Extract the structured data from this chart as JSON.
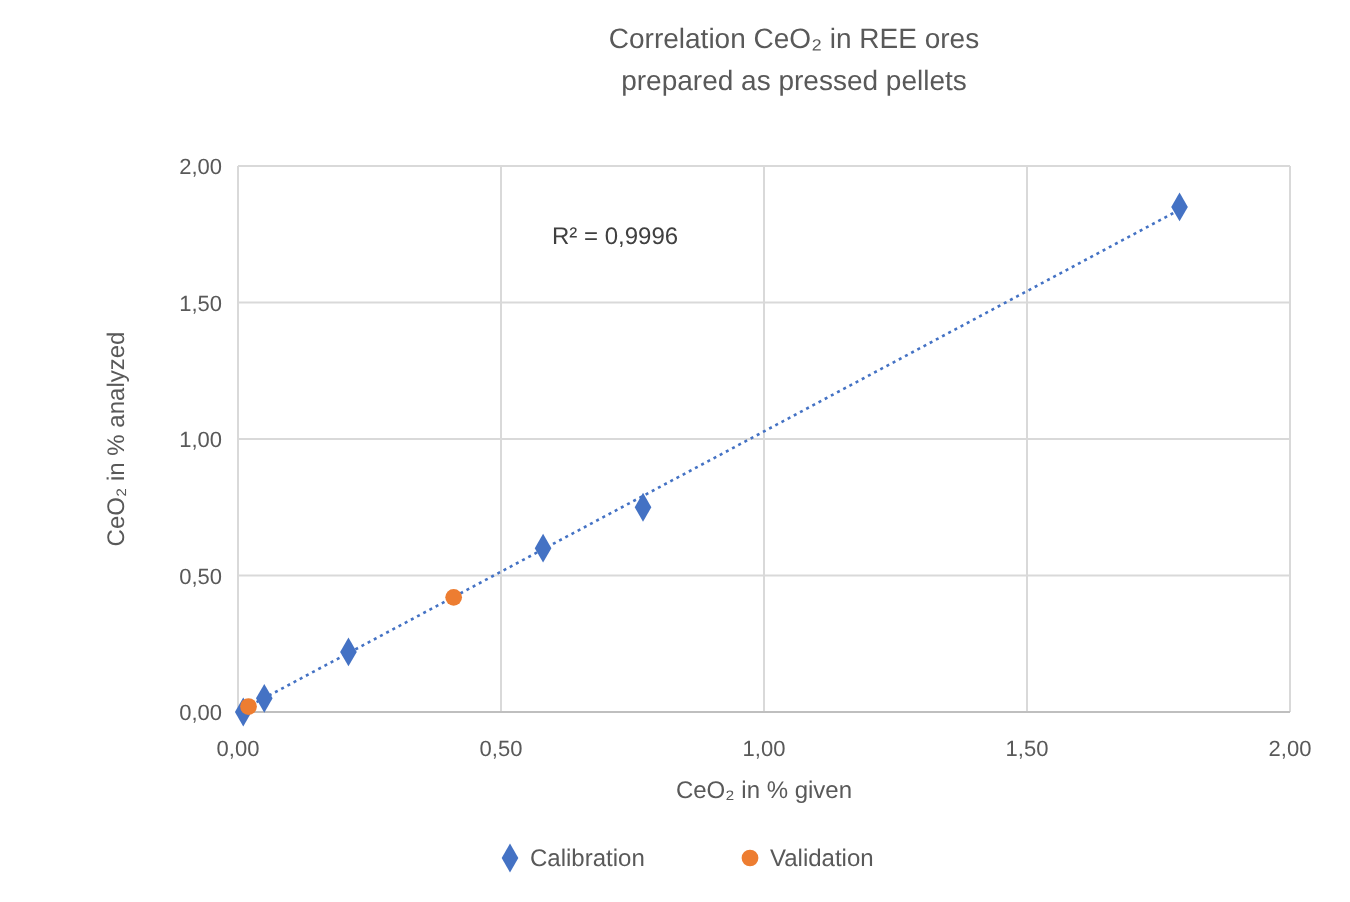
{
  "chart_data": {
    "type": "scatter",
    "title": "Correlation CeO₂ in REE ores\nprepared as pressed pellets",
    "xlabel": "CeO₂ in % given",
    "ylabel": "CeO₂ in % analyzed",
    "annotations": [
      "R² = 0,9996"
    ],
    "xlim": [
      0,
      2
    ],
    "ylim": [
      0,
      2
    ],
    "xticks": [
      {
        "value": 0,
        "label": "0,00"
      },
      {
        "value": 0.5,
        "label": "0,50"
      },
      {
        "value": 1,
        "label": "1,00"
      },
      {
        "value": 1.5,
        "label": "1,50"
      },
      {
        "value": 2,
        "label": "2,00"
      }
    ],
    "yticks": [
      {
        "value": 0,
        "label": "0,00"
      },
      {
        "value": 0.5,
        "label": "0,50"
      },
      {
        "value": 1,
        "label": "1,00"
      },
      {
        "value": 1.5,
        "label": "1,50"
      },
      {
        "value": 2,
        "label": "2,00"
      }
    ],
    "grid": true,
    "legend": "bottom",
    "series": [
      {
        "type": "line",
        "color": "#4472c4",
        "line_style": "dotted",
        "marker": "none",
        "x": [
          0,
          1.8
        ],
        "values": [
          0,
          1.85
        ]
      },
      {
        "name": "Calibration",
        "color": "#4472c4",
        "marker": "diamond",
        "x": [
          0.01,
          0.05,
          0.21,
          0.58,
          0.77,
          1.79
        ],
        "values": [
          0,
          0.05,
          0.22,
          0.6,
          0.75,
          1.85
        ]
      },
      {
        "name": "Validation",
        "color": "#ed7d31",
        "marker": "circle",
        "x": [
          0.02,
          0.41
        ],
        "values": [
          0.02,
          0.42
        ]
      }
    ]
  }
}
